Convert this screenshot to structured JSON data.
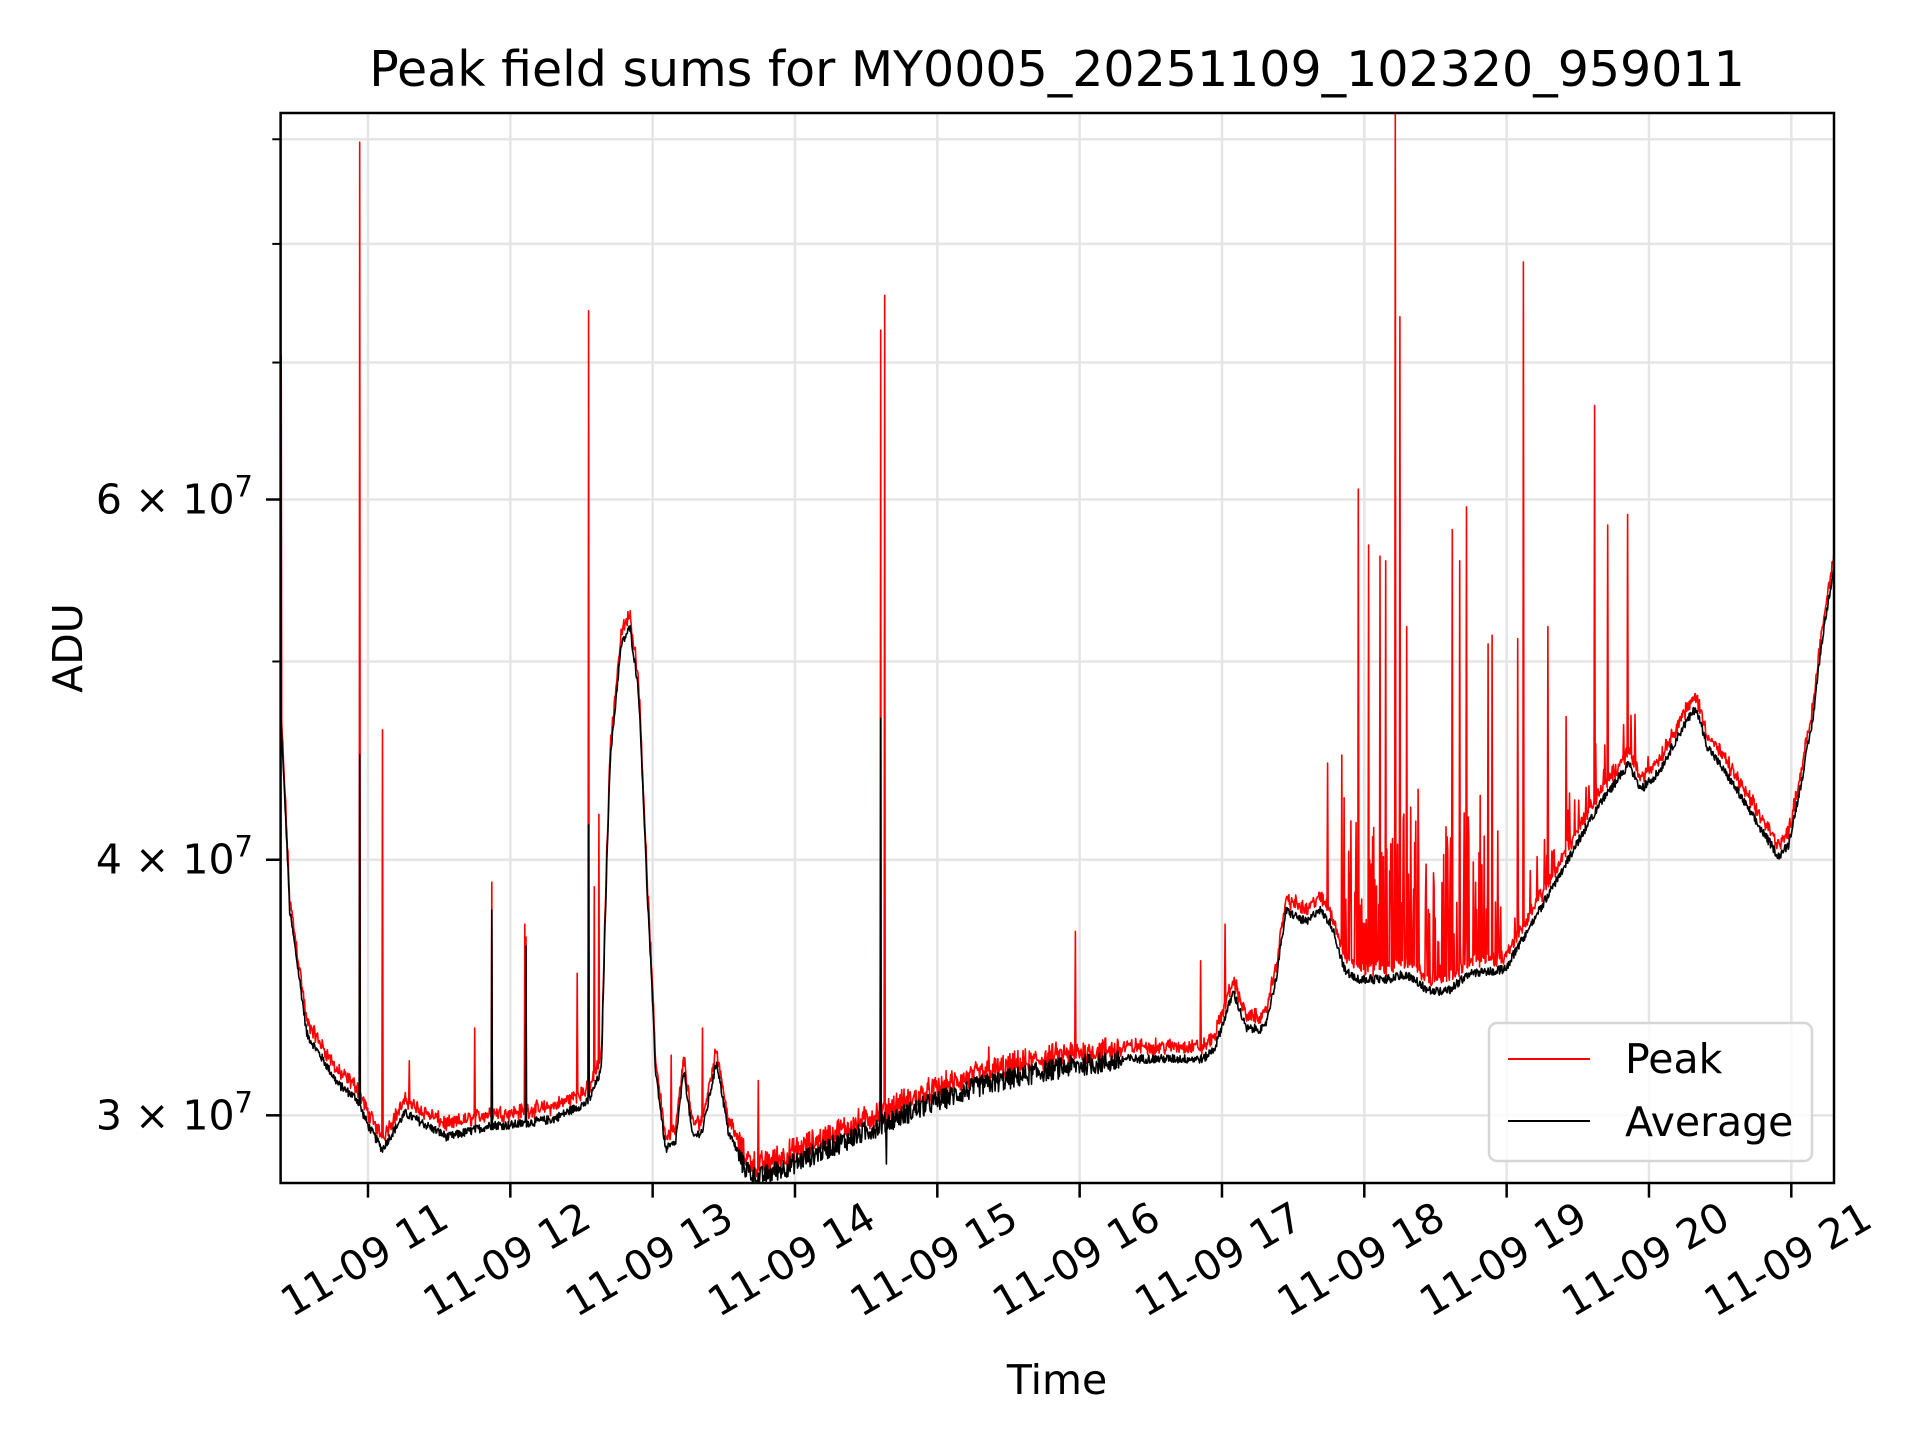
{
  "chart_data": {
    "type": "line",
    "title": "Peak field sums for MY0005_20251109_102320_959011",
    "xlabel": "Time",
    "ylabel": "ADU",
    "yscale": "log",
    "xlim_hours": [
      10.386,
      21.3
    ],
    "ylim": [
      27800000,
      92700000
    ],
    "grid": true,
    "legend_position": "lower-right",
    "x_ticks": [
      {
        "hour": 11,
        "label": "11-09 11"
      },
      {
        "hour": 12,
        "label": "11-09 12"
      },
      {
        "hour": 13,
        "label": "11-09 13"
      },
      {
        "hour": 14,
        "label": "11-09 14"
      },
      {
        "hour": 15,
        "label": "11-09 15"
      },
      {
        "hour": 16,
        "label": "11-09 16"
      },
      {
        "hour": 17,
        "label": "11-09 17"
      },
      {
        "hour": 18,
        "label": "11-09 18"
      },
      {
        "hour": 19,
        "label": "11-09 19"
      },
      {
        "hour": 20,
        "label": "11-09 20"
      },
      {
        "hour": 21,
        "label": "11-09 21"
      }
    ],
    "y_ticks": [
      {
        "value": 30000000,
        "base": "3 × 10",
        "exp": "7"
      },
      {
        "value": 40000000,
        "base": "4 × 10",
        "exp": "7"
      },
      {
        "value": 60000000,
        "base": "6 × 10",
        "exp": "7"
      }
    ],
    "y_minor_ticks": [
      50000000,
      70000000,
      80000000,
      90000000
    ],
    "series": [
      {
        "name": "Peak",
        "color": "#ff0000",
        "spikes_hour_value_e7": [
          [
            10.39,
            7.06
          ],
          [
            10.94,
            8.97
          ],
          [
            11.1,
            4.63
          ],
          [
            11.29,
            3.19
          ],
          [
            11.75,
            3.31
          ],
          [
            11.87,
            3.9
          ],
          [
            12.1,
            3.72
          ],
          [
            12.47,
            3.52
          ],
          [
            12.55,
            7.42
          ],
          [
            12.59,
            3.88
          ],
          [
            12.62,
            4.21
          ],
          [
            13.13,
            3.21
          ],
          [
            13.35,
            3.31
          ],
          [
            13.74,
            3.12
          ],
          [
            14.6,
            7.26
          ],
          [
            14.63,
            7.55
          ],
          [
            15.36,
            3.24
          ],
          [
            15.97,
            3.69
          ],
          [
            16.85,
            3.57
          ],
          [
            17.02,
            3.72
          ],
          [
            17.74,
            4.46
          ],
          [
            17.84,
            4.5
          ],
          [
            17.96,
            6.07
          ],
          [
            18.03,
            5.7
          ],
          [
            18.11,
            5.63
          ],
          [
            18.15,
            5.6
          ],
          [
            18.22,
            9.27
          ],
          [
            18.25,
            7.37
          ],
          [
            18.3,
            5.2
          ],
          [
            18.38,
            4.33
          ],
          [
            18.62,
            5.8
          ],
          [
            18.67,
            5.6
          ],
          [
            18.72,
            5.95
          ],
          [
            18.87,
            5.1
          ],
          [
            18.9,
            5.15
          ],
          [
            19.08,
            5.13
          ],
          [
            19.12,
            7.84
          ],
          [
            19.29,
            5.2
          ],
          [
            19.42,
            4.7
          ],
          [
            19.62,
            6.67
          ],
          [
            19.71,
            5.83
          ],
          [
            19.85,
            5.9
          ]
        ]
      },
      {
        "name": "Average",
        "color": "#000000",
        "hour_value_e7": [
          [
            10.386,
            4.71
          ],
          [
            10.45,
            3.78
          ],
          [
            10.57,
            3.29
          ],
          [
            10.79,
            3.11
          ],
          [
            10.92,
            3.06
          ],
          [
            11.0,
            2.97
          ],
          [
            11.1,
            2.89
          ],
          [
            11.26,
            3.01
          ],
          [
            11.56,
            2.93
          ],
          [
            11.87,
            2.97
          ],
          [
            12.0,
            2.97
          ],
          [
            12.3,
            2.99
          ],
          [
            12.55,
            3.05
          ],
          [
            12.64,
            3.16
          ],
          [
            12.7,
            4.46
          ],
          [
            12.78,
            5.1
          ],
          [
            12.84,
            5.2
          ],
          [
            12.9,
            4.85
          ],
          [
            12.96,
            3.88
          ],
          [
            13.02,
            3.16
          ],
          [
            13.09,
            2.89
          ],
          [
            13.16,
            2.91
          ],
          [
            13.22,
            3.16
          ],
          [
            13.28,
            2.93
          ],
          [
            13.35,
            2.95
          ],
          [
            13.45,
            3.19
          ],
          [
            13.53,
            2.95
          ],
          [
            13.64,
            2.84
          ],
          [
            13.73,
            2.8
          ],
          [
            13.95,
            2.84
          ],
          [
            14.29,
            2.91
          ],
          [
            14.58,
            2.97
          ],
          [
            14.66,
            2.99
          ],
          [
            14.97,
            3.05
          ],
          [
            15.31,
            3.11
          ],
          [
            15.74,
            3.16
          ],
          [
            15.96,
            3.18
          ],
          [
            16.35,
            3.2
          ],
          [
            16.87,
            3.2
          ],
          [
            16.95,
            3.24
          ],
          [
            17.08,
            3.45
          ],
          [
            17.17,
            3.31
          ],
          [
            17.3,
            3.31
          ],
          [
            17.38,
            3.5
          ],
          [
            17.45,
            3.78
          ],
          [
            17.6,
            3.73
          ],
          [
            17.68,
            3.79
          ],
          [
            17.77,
            3.72
          ],
          [
            17.86,
            3.54
          ],
          [
            17.95,
            3.5
          ],
          [
            18.16,
            3.5
          ],
          [
            18.29,
            3.52
          ],
          [
            18.47,
            3.45
          ],
          [
            18.6,
            3.46
          ],
          [
            18.73,
            3.52
          ],
          [
            18.99,
            3.54
          ],
          [
            19.2,
            3.75
          ],
          [
            19.42,
            3.99
          ],
          [
            19.64,
            4.25
          ],
          [
            19.86,
            4.46
          ],
          [
            19.94,
            4.33
          ],
          [
            20.07,
            4.42
          ],
          [
            20.24,
            4.65
          ],
          [
            20.33,
            4.75
          ],
          [
            20.41,
            4.55
          ],
          [
            20.59,
            4.36
          ],
          [
            20.76,
            4.17
          ],
          [
            20.91,
            4.02
          ],
          [
            20.98,
            4.07
          ],
          [
            21.06,
            4.33
          ],
          [
            21.15,
            4.68
          ],
          [
            21.21,
            5.09
          ],
          [
            21.3,
            5.57
          ]
        ],
        "spikes_hour_value_e7": [
          [
            10.94,
            4.5
          ],
          [
            11.87,
            3.78
          ],
          [
            12.11,
            3.63
          ],
          [
            12.55,
            4.16
          ],
          [
            14.6,
            4.69
          ],
          [
            14.64,
            2.84
          ]
        ]
      }
    ]
  }
}
